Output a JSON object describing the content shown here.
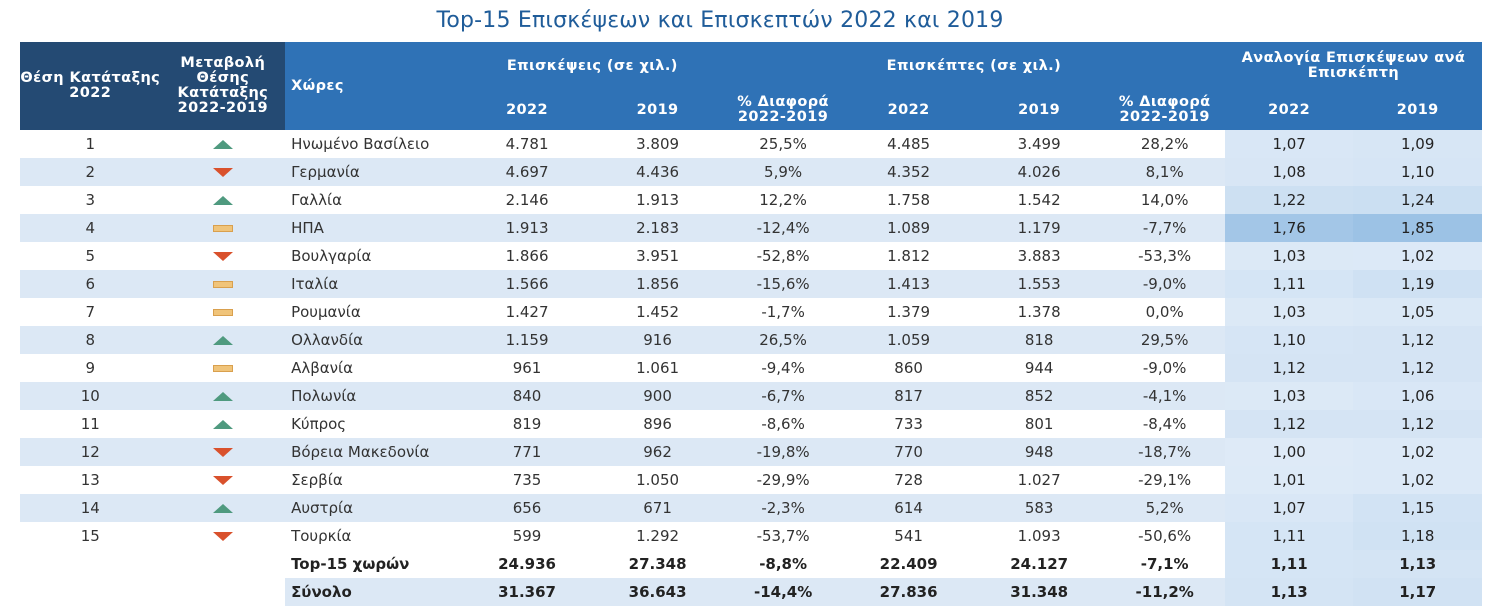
{
  "title": "Top-15 Επισκέψεων και Επισκεπτών 2022 και 2019",
  "headers": {
    "rank": "Θέση Κατάταξης 2022",
    "rank_change": "Μεταβολή Θέσης Κατάταξης 2022-2019",
    "country": "Χώρες",
    "visits_group": "Επισκέψεις (σε χιλ.)",
    "visitors_group": "Επισκέπτες (σε χιλ.)",
    "ratio_group": "Αναλογία Επισκέψεων ανά Επισκέπτη",
    "y2022": "2022",
    "y2019": "2019",
    "pct_diff": "% Διαφορά 2022-2019"
  },
  "colors": {
    "header_dark": "#244a73",
    "header_blue": "#2f72b6",
    "band": "#dce8f5",
    "up": "#4f9a7f",
    "down": "#d9512c",
    "same": "#f0c47a",
    "title": "#1f5c99"
  },
  "rows": [
    {
      "rank": "1",
      "change": "up",
      "country": "Ηνωμένο Βασίλειο",
      "v22": "4.781",
      "v19": "3.809",
      "vpct": "25,5%",
      "p22": "4.485",
      "p19": "3.499",
      "ppct": "28,2%",
      "r22": "1,07",
      "r19": "1,09"
    },
    {
      "rank": "2",
      "change": "down",
      "country": "Γερμανία",
      "v22": "4.697",
      "v19": "4.436",
      "vpct": "5,9%",
      "p22": "4.352",
      "p19": "4.026",
      "ppct": "8,1%",
      "r22": "1,08",
      "r19": "1,10"
    },
    {
      "rank": "3",
      "change": "up",
      "country": "Γαλλία",
      "v22": "2.146",
      "v19": "1.913",
      "vpct": "12,2%",
      "p22": "1.758",
      "p19": "1.542",
      "ppct": "14,0%",
      "r22": "1,22",
      "r19": "1,24"
    },
    {
      "rank": "4",
      "change": "same",
      "country": "ΗΠΑ",
      "v22": "1.913",
      "v19": "2.183",
      "vpct": "-12,4%",
      "p22": "1.089",
      "p19": "1.179",
      "ppct": "-7,7%",
      "r22": "1,76",
      "r19": "1,85"
    },
    {
      "rank": "5",
      "change": "down",
      "country": "Βουλγαρία",
      "v22": "1.866",
      "v19": "3.951",
      "vpct": "-52,8%",
      "p22": "1.812",
      "p19": "3.883",
      "ppct": "-53,3%",
      "r22": "1,03",
      "r19": "1,02"
    },
    {
      "rank": "6",
      "change": "same",
      "country": "Ιταλία",
      "v22": "1.566",
      "v19": "1.856",
      "vpct": "-15,6%",
      "p22": "1.413",
      "p19": "1.553",
      "ppct": "-9,0%",
      "r22": "1,11",
      "r19": "1,19"
    },
    {
      "rank": "7",
      "change": "same",
      "country": "Ρουμανία",
      "v22": "1.427",
      "v19": "1.452",
      "vpct": "-1,7%",
      "p22": "1.379",
      "p19": "1.378",
      "ppct": "0,0%",
      "r22": "1,03",
      "r19": "1,05"
    },
    {
      "rank": "8",
      "change": "up",
      "country": "Ολλανδία",
      "v22": "1.159",
      "v19": "916",
      "vpct": "26,5%",
      "p22": "1.059",
      "p19": "818",
      "ppct": "29,5%",
      "r22": "1,10",
      "r19": "1,12"
    },
    {
      "rank": "9",
      "change": "same",
      "country": "Αλβανία",
      "v22": "961",
      "v19": "1.061",
      "vpct": "-9,4%",
      "p22": "860",
      "p19": "944",
      "ppct": "-9,0%",
      "r22": "1,12",
      "r19": "1,12"
    },
    {
      "rank": "10",
      "change": "up",
      "country": "Πολωνία",
      "v22": "840",
      "v19": "900",
      "vpct": "-6,7%",
      "p22": "817",
      "p19": "852",
      "ppct": "-4,1%",
      "r22": "1,03",
      "r19": "1,06"
    },
    {
      "rank": "11",
      "change": "up",
      "country": "Κύπρος",
      "v22": "819",
      "v19": "896",
      "vpct": "-8,6%",
      "p22": "733",
      "p19": "801",
      "ppct": "-8,4%",
      "r22": "1,12",
      "r19": "1,12"
    },
    {
      "rank": "12",
      "change": "down",
      "country": "Βόρεια Μακεδονία",
      "v22": "771",
      "v19": "962",
      "vpct": "-19,8%",
      "p22": "770",
      "p19": "948",
      "ppct": "-18,7%",
      "r22": "1,00",
      "r19": "1,02"
    },
    {
      "rank": "13",
      "change": "down",
      "country": "Σερβία",
      "v22": "735",
      "v19": "1.050",
      "vpct": "-29,9%",
      "p22": "728",
      "p19": "1.027",
      "ppct": "-29,1%",
      "r22": "1,01",
      "r19": "1,02"
    },
    {
      "rank": "14",
      "change": "up",
      "country": "Αυστρία",
      "v22": "656",
      "v19": "671",
      "vpct": "-2,3%",
      "p22": "614",
      "p19": "583",
      "ppct": "5,2%",
      "r22": "1,07",
      "r19": "1,15"
    },
    {
      "rank": "15",
      "change": "down",
      "country": "Τουρκία",
      "v22": "599",
      "v19": "1.292",
      "vpct": "-53,7%",
      "p22": "541",
      "p19": "1.093",
      "ppct": "-50,6%",
      "r22": "1,11",
      "r19": "1,18"
    }
  ],
  "totals": [
    {
      "label": "Top-15 χωρών",
      "v22": "24.936",
      "v19": "27.348",
      "vpct": "-8,8%",
      "p22": "22.409",
      "p19": "24.127",
      "ppct": "-7,1%",
      "r22": "1,11",
      "r19": "1,13"
    },
    {
      "label": "Σύνολο",
      "v22": "31.367",
      "v19": "36.643",
      "vpct": "-14,4%",
      "p22": "27.836",
      "p19": "31.348",
      "ppct": "-11,2%",
      "r22": "1,13",
      "r19": "1,17"
    }
  ]
}
